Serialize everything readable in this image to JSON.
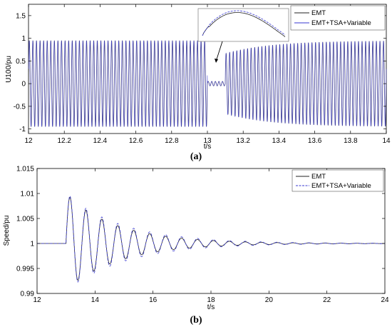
{
  "chart_data": [
    {
      "type": "line",
      "caption": "(a)",
      "xlabel": "t/s",
      "ylabel": "U100/pu",
      "xlim": [
        12,
        14
      ],
      "ylim": [
        -1.1,
        1.75
      ],
      "xticks": [
        "12",
        "12.2",
        "12.4",
        "12.6",
        "12.8",
        "13",
        "13.2",
        "13.4",
        "13.6",
        "13.8",
        "14"
      ],
      "yticks": [
        "-1",
        "-0.5",
        "0",
        "0.5",
        "1",
        "1.5"
      ],
      "legend_position": "top-right",
      "series": [
        {
          "name": "EMT",
          "color": "#222222",
          "description_values": {
            "steady_amplitude": 0.95,
            "fault_start": 13.0,
            "fault_end": 13.1,
            "fault_amplitude": 0.05
          }
        },
        {
          "name": "EMT+TSA+Variable",
          "color": "#3a3ad0",
          "description_values": {
            "steady_amplitude": 0.95,
            "fault_start": 13.0,
            "fault_end": 13.1,
            "fault_amplitude": 0.05
          }
        }
      ],
      "inset": true
    },
    {
      "type": "line",
      "caption": "(b)",
      "xlabel": "t/s",
      "ylabel": "Speed/pu",
      "xlim": [
        12,
        24
      ],
      "ylim": [
        0.99,
        1.015
      ],
      "xticks": [
        "12",
        "14",
        "16",
        "18",
        "20",
        "22",
        "24"
      ],
      "yticks": [
        "0.99",
        "0.995",
        "1",
        "1.005",
        "1.01",
        "1.015"
      ],
      "legend_position": "top-right",
      "series": [
        {
          "name": "EMT",
          "color": "#222222",
          "description_values": {
            "disturbance_time": 13.0,
            "first_peak": 1.0105,
            "first_trough": 0.9915,
            "damping": 0.55,
            "period": 0.55
          }
        },
        {
          "name": "EMT+TSA+Variable",
          "color": "#3a3ad0",
          "description_values": {
            "disturbance_time": 13.0,
            "first_peak": 1.0125,
            "first_trough": 0.993,
            "damping": 0.5,
            "period": 0.55
          }
        }
      ]
    }
  ]
}
